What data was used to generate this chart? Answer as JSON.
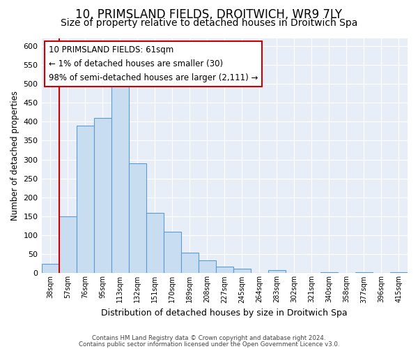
{
  "title": "10, PRIMSLAND FIELDS, DROITWICH, WR9 7LY",
  "subtitle": "Size of property relative to detached houses in Droitwich Spa",
  "xlabel": "Distribution of detached houses by size in Droitwich Spa",
  "ylabel": "Number of detached properties",
  "bin_labels": [
    "38sqm",
    "57sqm",
    "76sqm",
    "95sqm",
    "113sqm",
    "132sqm",
    "151sqm",
    "170sqm",
    "189sqm",
    "208sqm",
    "227sqm",
    "245sqm",
    "264sqm",
    "283sqm",
    "302sqm",
    "321sqm",
    "340sqm",
    "358sqm",
    "377sqm",
    "396sqm",
    "415sqm"
  ],
  "bar_heights": [
    25,
    150,
    390,
    410,
    500,
    290,
    160,
    110,
    55,
    33,
    18,
    12,
    0,
    8,
    0,
    0,
    2,
    0,
    3,
    0,
    3
  ],
  "bar_color": "#c8ddf0",
  "bar_edge_color": "#5b9bd5",
  "vline_x_index": 1,
  "vline_color": "#cc0000",
  "ylim": [
    0,
    620
  ],
  "yticks": [
    0,
    50,
    100,
    150,
    200,
    250,
    300,
    350,
    400,
    450,
    500,
    550,
    600
  ],
  "annotation_title": "10 PRIMSLAND FIELDS: 61sqm",
  "annotation_line1": "← 1% of detached houses are smaller (30)",
  "annotation_line2": "98% of semi-detached houses are larger (2,111) →",
  "annotation_box_facecolor": "#ffffff",
  "annotation_box_edgecolor": "#cc0000",
  "footnote1": "Contains HM Land Registry data © Crown copyright and database right 2024.",
  "footnote2": "Contains public sector information licensed under the Open Government Licence v3.0.",
  "plot_bg_color": "#e8eef8",
  "title_fontsize": 12,
  "subtitle_fontsize": 10
}
